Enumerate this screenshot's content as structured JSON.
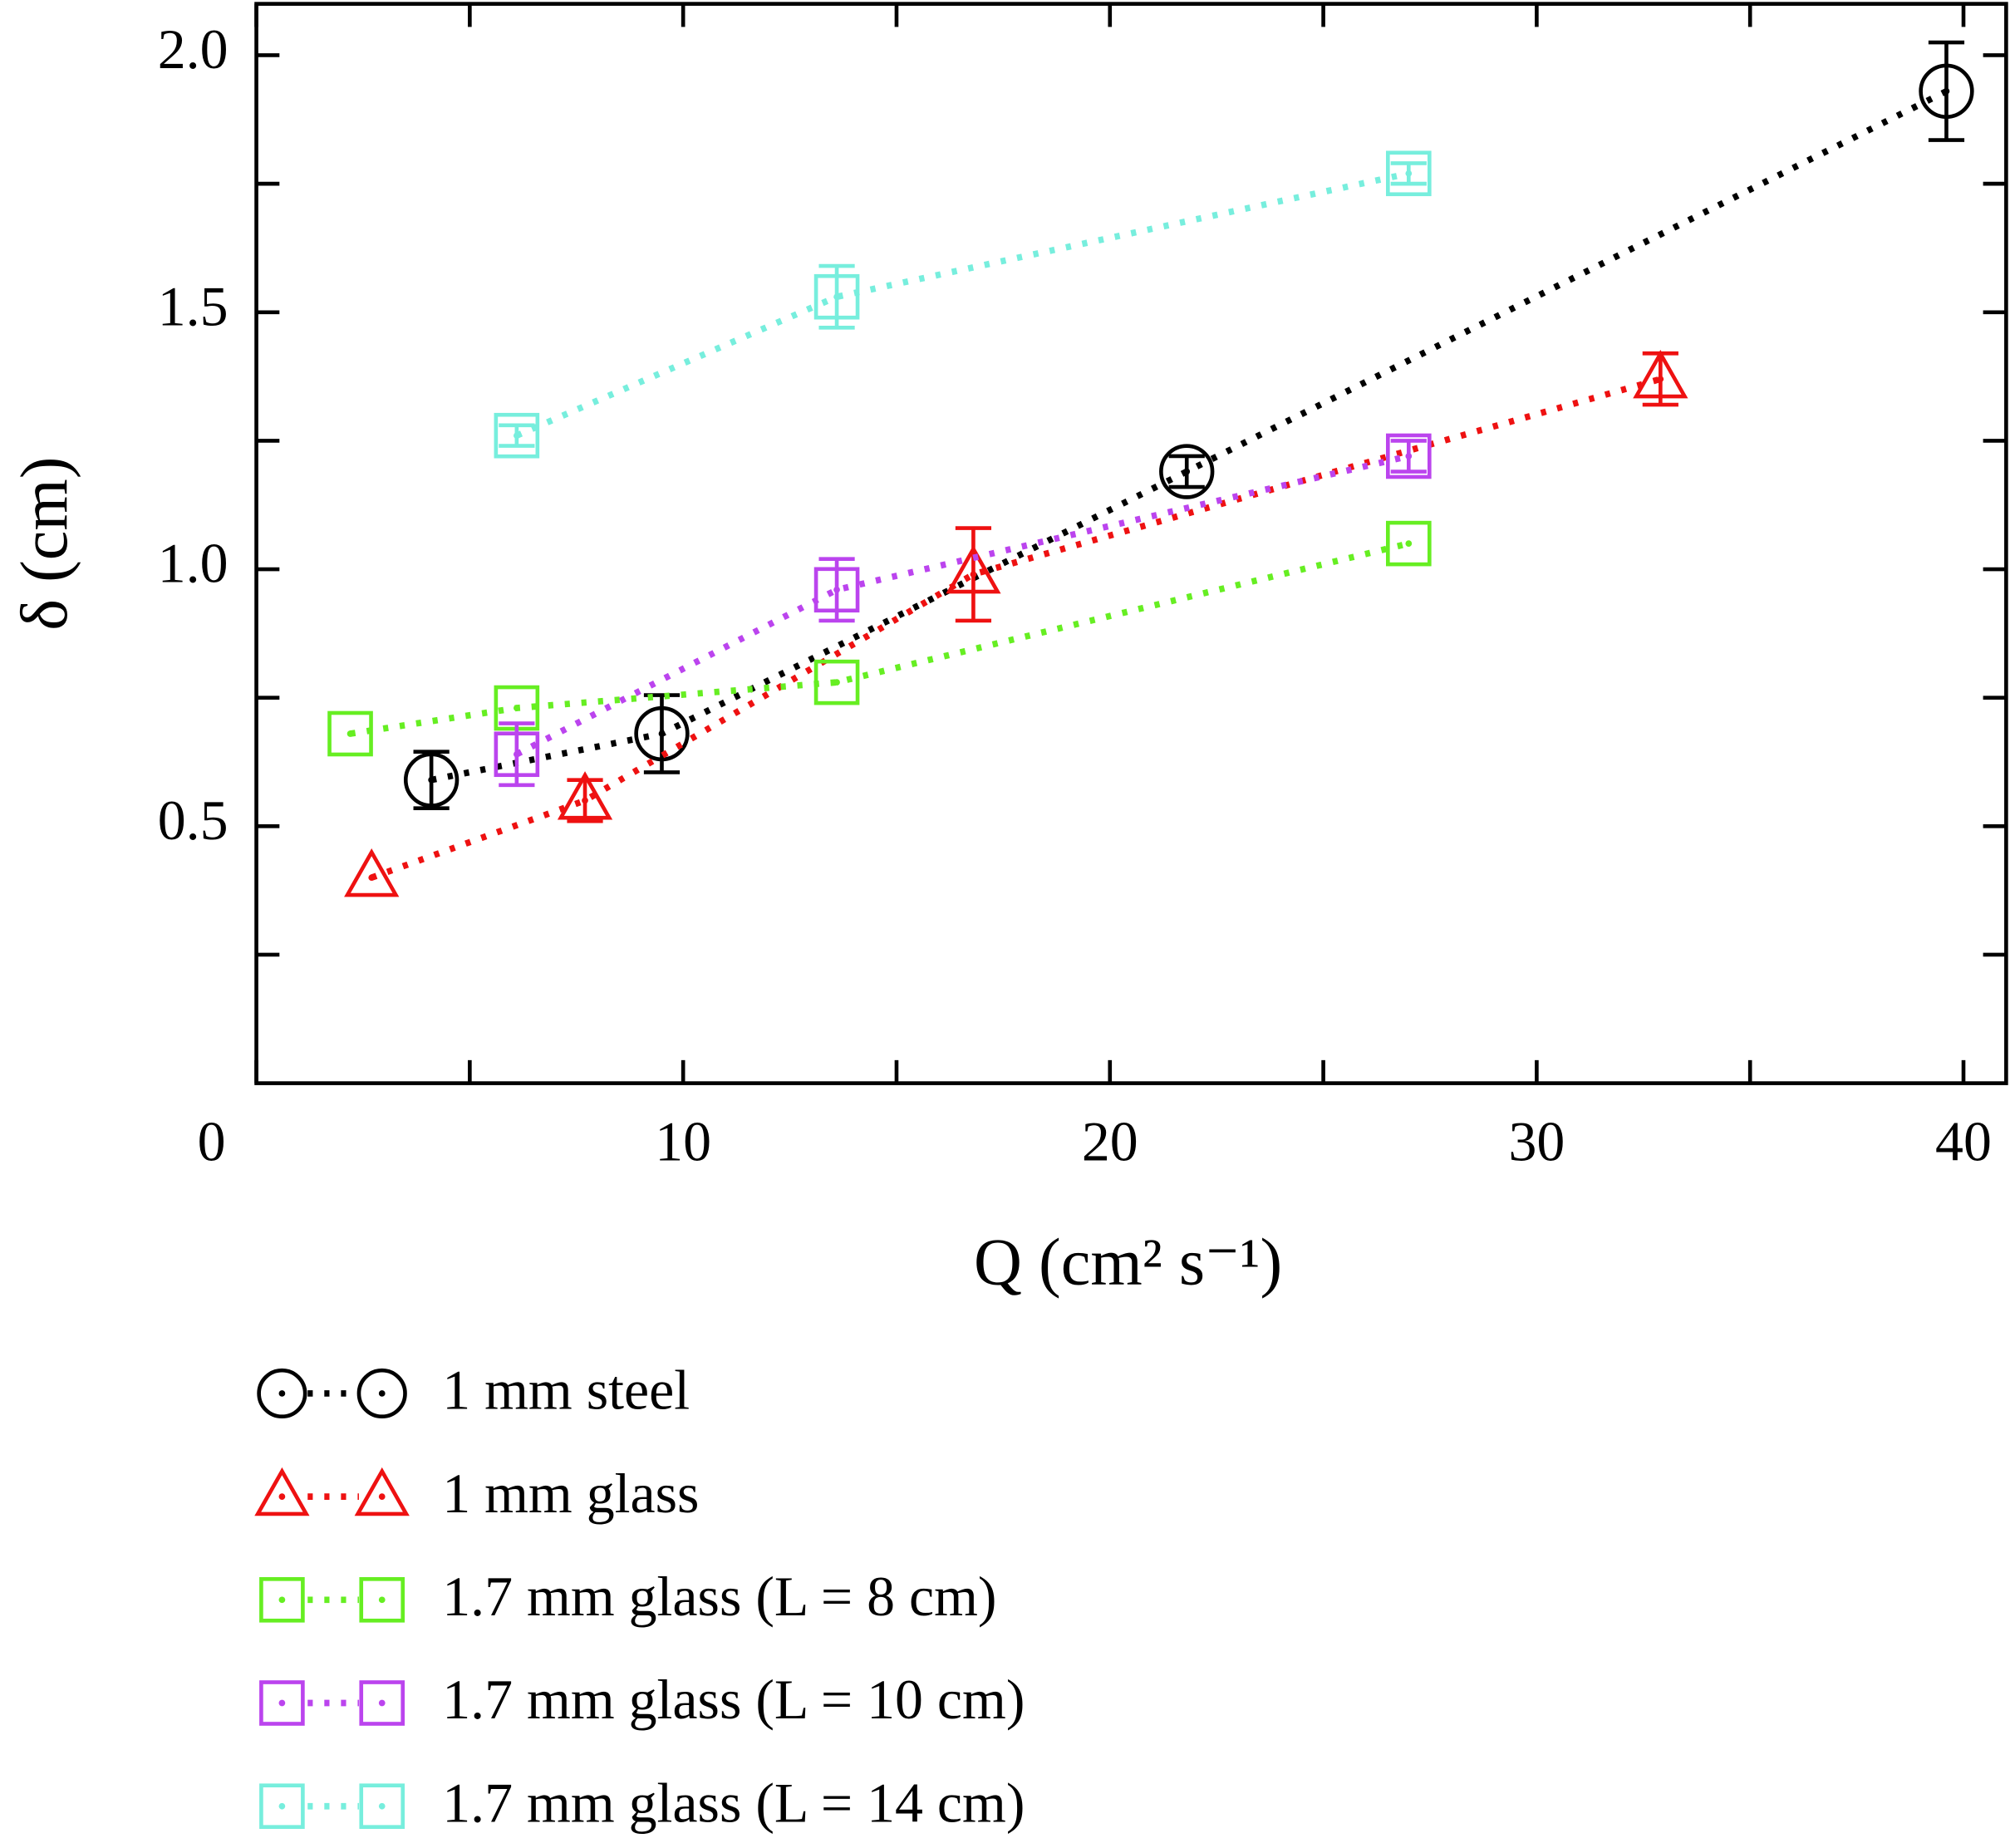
{
  "chart_data": {
    "type": "scatter",
    "x_label": "Q (cm² s⁻¹)",
    "y_label": "δ (cm)",
    "xlim": [
      0,
      41
    ],
    "xticks": [
      0,
      10,
      20,
      30,
      40
    ],
    "xminor_ticks": [
      5,
      15,
      25,
      35
    ],
    "ylim": [
      0,
      2.1
    ],
    "yticks": [
      {
        "value": 0.5,
        "label": "0.5"
      },
      {
        "value": 1,
        "label": "1.0"
      },
      {
        "value": 1.5,
        "label": "1.5"
      },
      {
        "value": 2,
        "label": "2.0"
      }
    ],
    "yminor_ticks": [
      0.25,
      0.75,
      1.25,
      1.75
    ],
    "series": [
      {
        "name": "1 mm steel",
        "color": "#000000",
        "marker": "circle",
        "x": [
          4.1,
          9.5,
          21.8,
          39.6
        ],
        "values": [
          0.59,
          0.68,
          1.19,
          1.93
        ],
        "errors": [
          0.055,
          0.075,
          0.03,
          0.095
        ]
      },
      {
        "name": "1 mm glass",
        "color": "#ee1111",
        "marker": "triangle",
        "x": [
          2.7,
          7.7,
          16.8,
          32.9
        ],
        "values": [
          0.4,
          0.55,
          0.99,
          1.37
        ],
        "errors": [
          null,
          0.04,
          0.09,
          0.05
        ]
      },
      {
        "name": "1.7 mm glass (L = 8 cm)",
        "color": "#66ee22",
        "marker": "square",
        "x": [
          2.2,
          6.1,
          13.6,
          27.0
        ],
        "values": [
          0.68,
          0.73,
          0.78,
          1.05
        ],
        "errors": [
          null,
          null,
          null,
          null
        ]
      },
      {
        "name": "1.7 mm glass (L = 10 cm)",
        "color": "#bb44ee",
        "marker": "square",
        "x": [
          6.1,
          13.6,
          27.0
        ],
        "values": [
          0.64,
          0.96,
          1.22
        ],
        "errors": [
          0.06,
          0.06,
          0.03
        ]
      },
      {
        "name": "1.7 mm glass (L = 14 cm)",
        "color": "#77eedd",
        "marker": "square",
        "x": [
          6.1,
          13.6,
          27.0
        ],
        "values": [
          1.26,
          1.53,
          1.77
        ],
        "errors": [
          0.02,
          0.06,
          0.02
        ]
      }
    ]
  }
}
